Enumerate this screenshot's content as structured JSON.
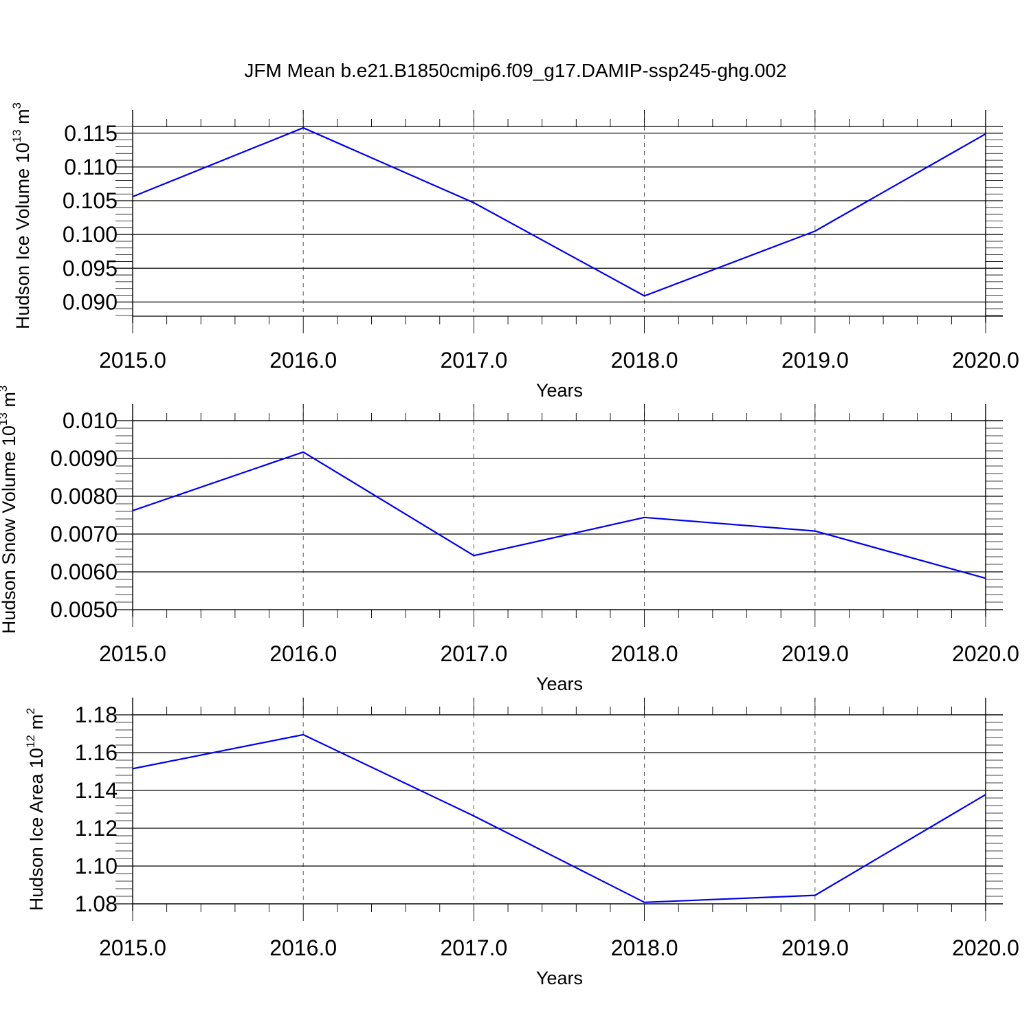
{
  "title": "JFM Mean b.e21.B1850cmip6.f09_g17.DAMIP-ssp245-ghg.002",
  "colors": {
    "line": "#0000ee",
    "axis": "#000000",
    "grid": "#555555"
  },
  "chart_data": [
    {
      "type": "line",
      "xlabel": "Years",
      "ylabel": "Hudson Ice Volume 10",
      "ylabel_exp": "13",
      "ylabel_unit": " m",
      "ylabel_unit_exp": "3",
      "x": [
        2015,
        2016,
        2017,
        2018,
        2019,
        2020
      ],
      "x_tick_labels": [
        "2015.0",
        "2016.0",
        "2017.0",
        "2018.0",
        "2019.0",
        "2020.0"
      ],
      "xlim": [
        2015,
        2020
      ],
      "ylim": [
        0.088,
        0.116
      ],
      "y_ticks": [
        0.09,
        0.095,
        0.1,
        0.105,
        0.11,
        0.115
      ],
      "y_tick_labels": [
        "0.090",
        "0.095",
        "0.100",
        "0.105",
        "0.110",
        "0.115"
      ],
      "y_minor_step": 0.001,
      "grid": "vertical-dashed",
      "series": [
        {
          "values": [
            0.1056,
            0.1158,
            0.1047,
            0.0909,
            0.1005,
            0.1149
          ]
        }
      ]
    },
    {
      "type": "line",
      "xlabel": "Years",
      "ylabel": "Hudson Snow Volume 10",
      "ylabel_exp": "13",
      "ylabel_unit": " m",
      "ylabel_unit_exp": "3",
      "x": [
        2015,
        2016,
        2017,
        2018,
        2019,
        2020
      ],
      "x_tick_labels": [
        "2015.0",
        "2016.0",
        "2017.0",
        "2018.0",
        "2019.0",
        "2020.0"
      ],
      "xlim": [
        2015,
        2020
      ],
      "ylim": [
        0.005,
        0.01
      ],
      "y_ticks": [
        0.005,
        0.006,
        0.007,
        0.008,
        0.009,
        0.01
      ],
      "y_tick_labels": [
        "0.0050",
        "0.0060",
        "0.0070",
        "0.0080",
        "0.0090",
        "0.010"
      ],
      "y_minor_step": 0.0002,
      "grid": "vertical-dashed",
      "series": [
        {
          "values": [
            0.00762,
            0.00917,
            0.00643,
            0.00744,
            0.00708,
            0.00583
          ]
        }
      ]
    },
    {
      "type": "line",
      "xlabel": "Years",
      "ylabel": "Hudson Ice Area 10",
      "ylabel_exp": "12",
      "ylabel_unit": " m",
      "ylabel_unit_exp": "2",
      "x": [
        2015,
        2016,
        2017,
        2018,
        2019,
        2020
      ],
      "x_tick_labels": [
        "2015.0",
        "2016.0",
        "2017.0",
        "2018.0",
        "2019.0",
        "2020.0"
      ],
      "xlim": [
        2015,
        2020
      ],
      "ylim": [
        1.08,
        1.18
      ],
      "y_ticks": [
        1.08,
        1.1,
        1.12,
        1.14,
        1.16,
        1.18
      ],
      "y_tick_labels": [
        "1.08",
        "1.10",
        "1.12",
        "1.14",
        "1.16",
        "1.18"
      ],
      "y_minor_step": 0.004,
      "grid": "vertical-dashed",
      "series": [
        {
          "values": [
            1.1515,
            1.1695,
            1.1265,
            1.0808,
            1.0845,
            1.1378
          ]
        }
      ]
    }
  ]
}
